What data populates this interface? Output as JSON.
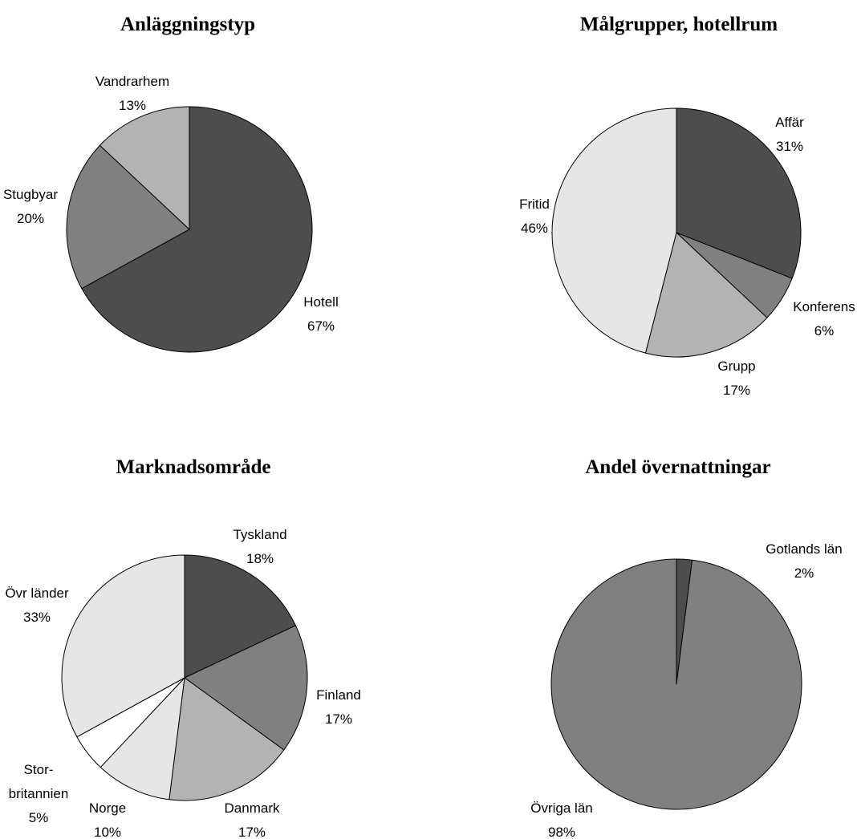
{
  "chart_data": [
    {
      "type": "pie",
      "title": "Anläggningstyp",
      "slices": [
        {
          "label": "Hotell",
          "value": 67,
          "display": "67%",
          "color": "#4d4d4d"
        },
        {
          "label": "Stugbyar",
          "value": 20,
          "display": "20%",
          "color": "#808080"
        },
        {
          "label": "Vandrarhem",
          "value": 13,
          "display": "13%",
          "color": "#b3b3b3"
        }
      ]
    },
    {
      "type": "pie",
      "title": "Målgrupper, hotellrum",
      "slices": [
        {
          "label": "Affär",
          "value": 31,
          "display": "31%",
          "color": "#4d4d4d"
        },
        {
          "label": "Konferens",
          "value": 6,
          "display": "6%",
          "color": "#808080"
        },
        {
          "label": "Grupp",
          "value": 17,
          "display": "17%",
          "color": "#b3b3b3"
        },
        {
          "label": "Fritid",
          "value": 46,
          "display": "46%",
          "color": "#e6e6e6"
        }
      ]
    },
    {
      "type": "pie",
      "title": "Marknadsområde",
      "slices": [
        {
          "label": "Tyskland",
          "value": 18,
          "display": "18%",
          "color": "#4d4d4d"
        },
        {
          "label": "Finland",
          "value": 17,
          "display": "17%",
          "color": "#808080"
        },
        {
          "label": "Danmark",
          "value": 17,
          "display": "17%",
          "color": "#b3b3b3"
        },
        {
          "label": "Norge",
          "value": 10,
          "display": "10%",
          "color": "#e6e6e6"
        },
        {
          "label": "Storbritannien",
          "label_lines": [
            "Stor-",
            "britannien"
          ],
          "value": 5,
          "display": "5%",
          "color": "#ffffff"
        },
        {
          "label": "Övr länder",
          "value": 33,
          "display": "33%",
          "color": "#e6e6e6"
        }
      ]
    },
    {
      "type": "pie",
      "title": "Andel övernattningar",
      "slices": [
        {
          "label": "Gotlands län",
          "value": 2,
          "display": "2%",
          "color": "#4d4d4d"
        },
        {
          "label": "Övriga län",
          "value": 98,
          "display": "98%",
          "color": "#808080"
        }
      ]
    }
  ]
}
